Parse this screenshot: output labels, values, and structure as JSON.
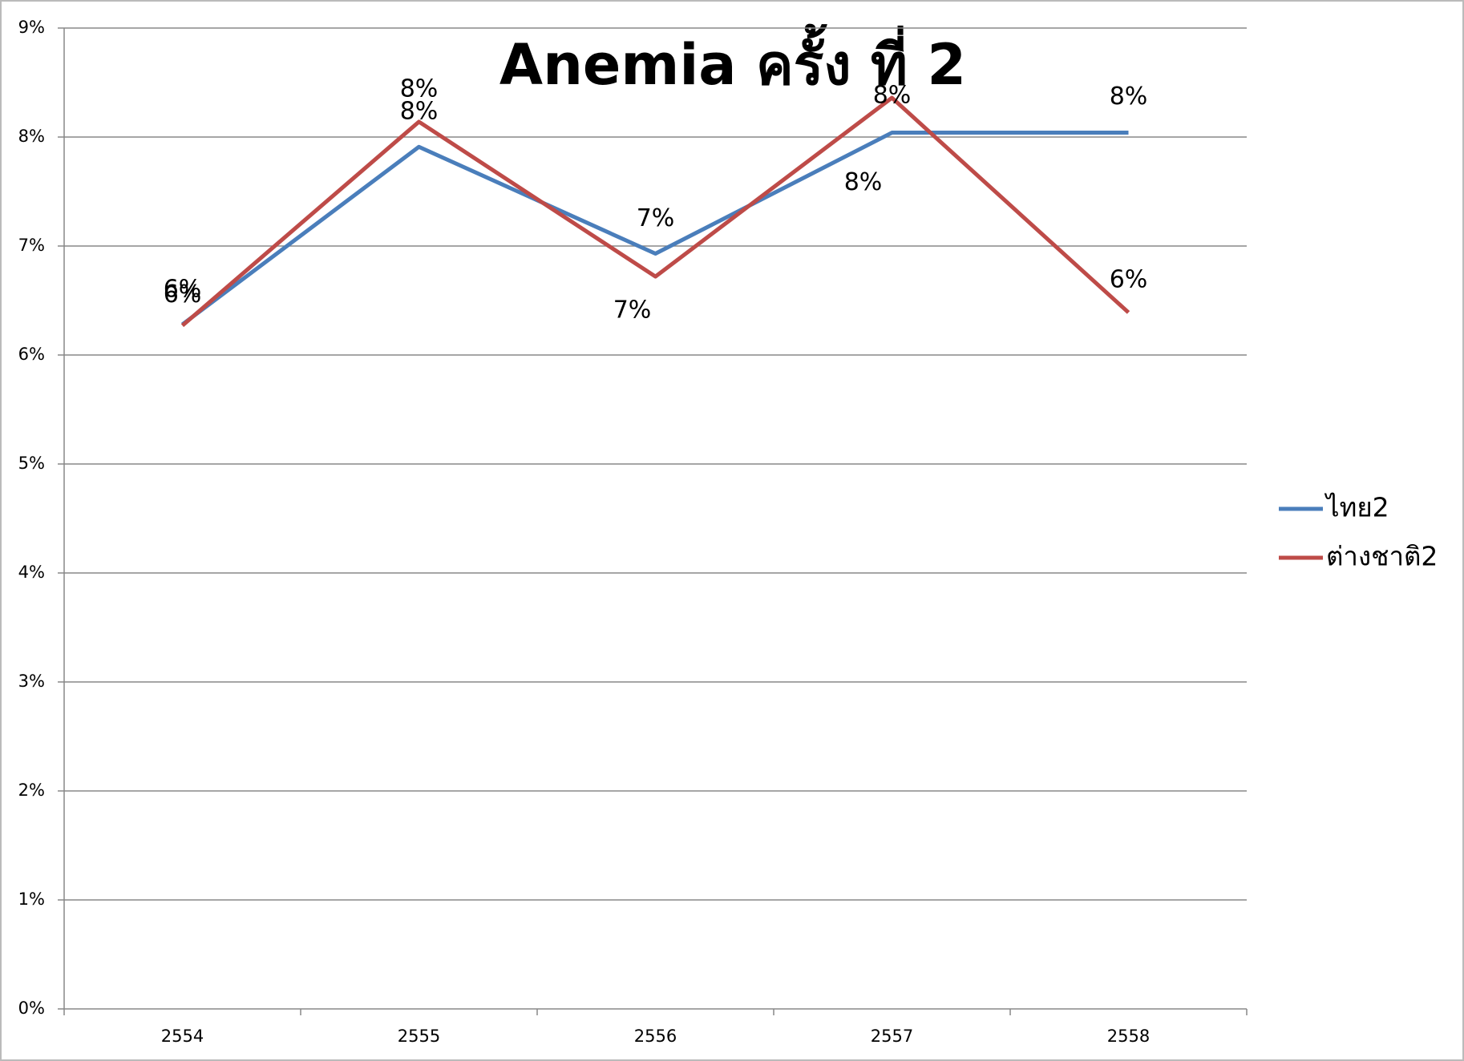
{
  "chart_data": {
    "type": "line",
    "title": "Anemia ครั้ง ที่ 2",
    "categories": [
      "2554",
      "2555",
      "2556",
      "2557",
      "2558"
    ],
    "series": [
      {
        "name": "ไทย2",
        "color": "#4a7ebb",
        "values": [
          6.28,
          7.91,
          6.93,
          8.04,
          8.04
        ],
        "value_labels": [
          "6%",
          "8%",
          "7%",
          "8%",
          "8%"
        ]
      },
      {
        "name": "ต่างชาติ2",
        "color": "#be4b48",
        "values": [
          6.27,
          8.14,
          6.72,
          8.36,
          6.39
        ],
        "value_labels": [
          "6%",
          "8%",
          "7%",
          "8%",
          "6%"
        ]
      }
    ],
    "ylim": [
      0,
      9
    ],
    "yticks": [
      {
        "value": 0,
        "label": "0%"
      },
      {
        "value": 1,
        "label": "1%"
      },
      {
        "value": 2,
        "label": "2%"
      },
      {
        "value": 3,
        "label": "3%"
      },
      {
        "value": 4,
        "label": "4%"
      },
      {
        "value": 5,
        "label": "5%"
      },
      {
        "value": 6,
        "label": "6%"
      },
      {
        "value": 7,
        "label": "7%"
      },
      {
        "value": 8,
        "label": "8%"
      },
      {
        "value": 9,
        "label": "9%"
      }
    ],
    "grid": true,
    "legend": "right"
  }
}
